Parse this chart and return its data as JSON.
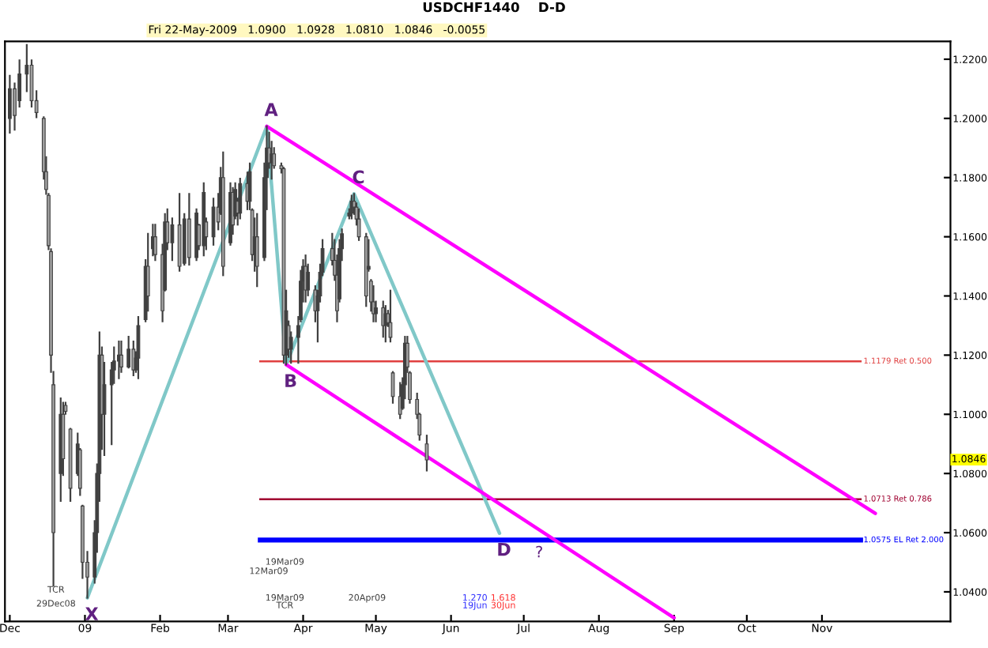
{
  "chart_data": {
    "type": "candlestick",
    "title": "USDCHF1440    D-D",
    "subtitle": "Fri 22-May-2009   1.0900   1.0928   1.0810   1.0846   -0.0055",
    "color": "#404040",
    "x": [
      "2008-12-01",
      "2008-12-03",
      "2008-12-05",
      "2008-12-08",
      "2008-12-10",
      "2008-12-12",
      "2008-12-15",
      "2008-12-16",
      "2008-12-17",
      "2008-12-18",
      "2008-12-19",
      "2008-12-22",
      "2008-12-23",
      "2008-12-24",
      "2008-12-26",
      "2008-12-29",
      "2008-12-30",
      "2008-12-31",
      "2009-01-02",
      "2009-01-05",
      "2009-01-06",
      "2009-01-07",
      "2009-01-08",
      "2009-01-09",
      "2009-01-12",
      "2009-01-13",
      "2009-01-15",
      "2009-01-16",
      "2009-01-19",
      "2009-01-21",
      "2009-01-22",
      "2009-01-23",
      "2009-01-26",
      "2009-01-27",
      "2009-01-29",
      "2009-01-30",
      "2009-02-02",
      "2009-02-03",
      "2009-02-04",
      "2009-02-06",
      "2009-02-09",
      "2009-02-11",
      "2009-02-13",
      "2009-02-16",
      "2009-02-17",
      "2009-02-19",
      "2009-02-20",
      "2009-02-23",
      "2009-02-25",
      "2009-02-26",
      "2009-02-27",
      "2009-03-02",
      "2009-03-03",
      "2009-03-04",
      "2009-03-05",
      "2009-03-06",
      "2009-03-09",
      "2009-03-10",
      "2009-03-11",
      "2009-03-12",
      "2009-03-13",
      "2009-03-16",
      "2009-03-17",
      "2009-03-18",
      "2009-03-19",
      "2009-03-20",
      "2009-03-23",
      "2009-03-24",
      "2009-03-25",
      "2009-03-26",
      "2009-03-27",
      "2009-03-30",
      "2009-03-31",
      "2009-04-01",
      "2009-04-02",
      "2009-04-03",
      "2009-04-06",
      "2009-04-07",
      "2009-04-08",
      "2009-04-09",
      "2009-04-13",
      "2009-04-14",
      "2009-04-15",
      "2009-04-16",
      "2009-04-17",
      "2009-04-20",
      "2009-04-21",
      "2009-04-22",
      "2009-04-23",
      "2009-04-24",
      "2009-04-27",
      "2009-04-28",
      "2009-04-29",
      "2009-04-30",
      "2009-05-01",
      "2009-05-04",
      "2009-05-05",
      "2009-05-06",
      "2009-05-07",
      "2009-05-08",
      "2009-05-11",
      "2009-05-12",
      "2009-05-13",
      "2009-05-14",
      "2009-05-15",
      "2009-05-18",
      "2009-05-19",
      "2009-05-22"
    ],
    "ohlc": [
      [
        1.2,
        1.2144,
        1.1952,
        1.21
      ],
      [
        1.21,
        1.2118,
        1.1962,
        1.201
      ],
      [
        1.206,
        1.2196,
        1.204,
        1.215
      ],
      [
        1.215,
        1.2248,
        1.2092,
        1.218
      ],
      [
        1.218,
        1.2196,
        1.204,
        1.206
      ],
      [
        1.206,
        1.2092,
        1.2004,
        1.202
      ],
      [
        1.2,
        1.2004,
        1.1796,
        1.182
      ],
      [
        1.182,
        1.1869,
        1.1745,
        1.176
      ],
      [
        1.174,
        1.1745,
        1.1558,
        1.157
      ],
      [
        1.155,
        1.1558,
        1.1143,
        1.12
      ],
      [
        1.11,
        1.1143,
        1.0421,
        1.06
      ],
      [
        1.08,
        1.1054,
        1.0707,
        1.1
      ],
      [
        1.1,
        1.1039,
        1.0795,
        1.085
      ],
      [
        1.103,
        1.1039,
        1.1002,
        1.101
      ],
      [
        1.095,
        1.0951,
        1.0707,
        1.075
      ],
      [
        1.08,
        1.0935,
        1.0795,
        1.09
      ],
      [
        1.088,
        1.0883,
        1.0727,
        1.075
      ],
      [
        1.069,
        1.0691,
        1.0447,
        1.05
      ],
      [
        1.05,
        1.0535,
        1.038,
        1.045
      ],
      [
        1.045,
        1.0639,
        1.0431,
        1.06
      ],
      [
        1.06,
        1.0831,
        1.0535,
        1.08
      ],
      [
        1.08,
        1.1277,
        1.0707,
        1.12
      ],
      [
        1.12,
        1.1226,
        1.0883,
        1.1
      ],
      [
        1.1,
        1.1174,
        1.0862,
        1.11
      ],
      [
        1.11,
        1.1174,
        1.0899,
        1.115
      ],
      [
        1.115,
        1.1226,
        1.1106,
        1.118
      ],
      [
        1.118,
        1.1246,
        1.1122,
        1.12
      ],
      [
        1.12,
        1.1246,
        1.1143,
        1.116
      ],
      [
        1.116,
        1.1262,
        1.1158,
        1.122
      ],
      [
        1.122,
        1.1246,
        1.1132,
        1.115
      ],
      [
        1.115,
        1.121,
        1.1143,
        1.119
      ],
      [
        1.119,
        1.1329,
        1.1122,
        1.13
      ],
      [
        1.132,
        1.1521,
        1.1314,
        1.15
      ],
      [
        1.15,
        1.161,
        1.135,
        1.14
      ],
      [
        1.156,
        1.1641,
        1.1537,
        1.16
      ],
      [
        1.16,
        1.1641,
        1.1521,
        1.154
      ],
      [
        1.154,
        1.1573,
        1.1314,
        1.135
      ],
      [
        1.142,
        1.1677,
        1.1418,
        1.165
      ],
      [
        1.165,
        1.1693,
        1.1558,
        1.158
      ],
      [
        1.158,
        1.1662,
        1.1521,
        1.164
      ],
      [
        1.164,
        1.1745,
        1.1485,
        1.15
      ],
      [
        1.151,
        1.1677,
        1.1506,
        1.166
      ],
      [
        1.166,
        1.1745,
        1.1506,
        1.153
      ],
      [
        1.153,
        1.1693,
        1.1521,
        1.168
      ],
      [
        1.164,
        1.1641,
        1.1558,
        1.157
      ],
      [
        1.157,
        1.1781,
        1.1537,
        1.175
      ],
      [
        1.165,
        1.1662,
        1.1558,
        1.16
      ],
      [
        1.16,
        1.1729,
        1.1573,
        1.17
      ],
      [
        1.17,
        1.1745,
        1.1625,
        1.165
      ],
      [
        1.168,
        1.1833,
        1.1677,
        1.18
      ],
      [
        1.18,
        1.1885,
        1.147,
        1.15
      ],
      [
        1.158,
        1.1781,
        1.1573,
        1.175
      ],
      [
        1.175,
        1.1765,
        1.161,
        1.164
      ],
      [
        1.167,
        1.1781,
        1.1662,
        1.176
      ],
      [
        1.172,
        1.1729,
        1.1641,
        1.168
      ],
      [
        1.168,
        1.1796,
        1.1662,
        1.178
      ],
      [
        1.178,
        1.1817,
        1.1693,
        1.172
      ],
      [
        1.172,
        1.1848,
        1.1693,
        1.182
      ],
      [
        1.169,
        1.1693,
        1.1521,
        1.154
      ],
      [
        1.154,
        1.1662,
        1.1485,
        1.16
      ],
      [
        1.16,
        1.1677,
        1.1433,
        1.15
      ],
      [
        1.153,
        1.1848,
        1.1521,
        1.18
      ],
      [
        1.18,
        1.1973,
        1.1693,
        1.19
      ],
      [
        1.19,
        1.1952,
        1.1833,
        1.185
      ],
      [
        1.185,
        1.1921,
        1.1796,
        1.188
      ],
      [
        1.188,
        1.19,
        1.1833,
        1.184
      ],
      [
        1.184,
        1.1848,
        1.1817,
        1.183
      ],
      [
        1.183,
        1.1833,
        1.1174,
        1.12
      ],
      [
        1.12,
        1.1418,
        1.1168,
        1.135
      ],
      [
        1.13,
        1.1314,
        1.1194,
        1.122
      ],
      [
        1.122,
        1.1277,
        1.1174,
        1.126
      ],
      [
        1.126,
        1.1329,
        1.1174,
        1.13
      ],
      [
        1.132,
        1.1485,
        1.1314,
        1.145
      ],
      [
        1.145,
        1.1521,
        1.1381,
        1.15
      ],
      [
        1.15,
        1.1537,
        1.1381,
        1.142
      ],
      [
        1.142,
        1.1506,
        1.1402,
        1.148
      ],
      [
        1.142,
        1.1433,
        1.1314,
        1.135
      ],
      [
        1.135,
        1.1418,
        1.1246,
        1.14
      ],
      [
        1.14,
        1.1506,
        1.1381,
        1.148
      ],
      [
        1.148,
        1.1589,
        1.147,
        1.156
      ],
      [
        1.156,
        1.161,
        1.1506,
        1.152
      ],
      [
        1.152,
        1.1589,
        1.1454,
        1.147
      ],
      [
        1.147,
        1.1537,
        1.1314,
        1.135
      ],
      [
        1.139,
        1.1589,
        1.1381,
        1.156
      ],
      [
        1.156,
        1.1625,
        1.1521,
        1.161
      ],
      [
        1.167,
        1.1693,
        1.1662,
        1.168
      ],
      [
        1.168,
        1.1739,
        1.1662,
        1.172
      ],
      [
        1.172,
        1.1745,
        1.1677,
        1.17
      ],
      [
        1.17,
        1.1713,
        1.1641,
        1.166
      ],
      [
        1.166,
        1.1693,
        1.1589,
        1.16
      ],
      [
        1.16,
        1.161,
        1.1366,
        1.14
      ],
      [
        1.149,
        1.1589,
        1.1485,
        1.15
      ],
      [
        1.145,
        1.1454,
        1.135,
        1.138
      ],
      [
        1.138,
        1.1433,
        1.1314,
        1.134
      ],
      [
        1.134,
        1.1381,
        1.1314,
        1.136
      ],
      [
        1.136,
        1.1381,
        1.1262,
        1.13
      ],
      [
        1.13,
        1.1366,
        1.1246,
        1.134
      ],
      [
        1.134,
        1.135,
        1.1298,
        1.131
      ],
      [
        1.131,
        1.1418,
        1.1246,
        1.126
      ],
      [
        1.114,
        1.1143,
        1.1039,
        1.106
      ],
      [
        1.106,
        1.1106,
        1.0987,
        1.1
      ],
      [
        1.102,
        1.1122,
        1.1018,
        1.11
      ],
      [
        1.11,
        1.1262,
        1.1054,
        1.124
      ],
      [
        1.124,
        1.1262,
        1.1143,
        1.116
      ],
      [
        1.114,
        1.1143,
        1.1039,
        1.105
      ],
      [
        1.105,
        1.107,
        1.0987,
        1.1
      ],
      [
        1.1,
        1.1002,
        1.0914,
        1.093
      ],
      [
        1.09,
        1.0928,
        1.081,
        1.0846
      ]
    ],
    "series": [
      {
        "type": "line",
        "color": "#80c8c8",
        "x": [
          "2009-01-02",
          "2009-03-17",
          "2009-03-25",
          "2009-04-22",
          "2009-06-21"
        ],
        "values": [
          1.038,
          1.1973,
          1.1168,
          1.1745,
          1.0598
        ],
        "value_labels": [
          "X",
          "A",
          "B",
          "C",
          "D"
        ]
      },
      {
        "type": "line",
        "color": "#ff00ff",
        "x": [
          "2009-03-17",
          "2009-11-23"
        ],
        "values": [
          1.1973,
          1.0665
        ]
      },
      {
        "type": "line",
        "color": "#ff00ff",
        "x": [
          "2009-03-25",
          "2009-09-01"
        ],
        "values": [
          1.1168,
          1.0312
        ]
      }
    ],
    "ref_lines": [
      {
        "axis": "y",
        "value": 1.1179,
        "label": "1.1179 Ret 0.500",
        "color": "#e04040"
      },
      {
        "axis": "y",
        "value": 1.0713,
        "label": "1.0713 Ret 0.786",
        "color": "#a00030"
      },
      {
        "axis": "y",
        "value": 1.0575,
        "label": "1.0575 EL Ret 2.000",
        "color": "#0000ff"
      }
    ],
    "annotations": [
      "?",
      "TCR",
      "29Dec08",
      "19Mar09",
      "12Mar09",
      "19Mar09",
      "TCR",
      "20Apr09",
      "1.270",
      "19Jun",
      "1.618",
      "30Jun",
      "1.0846"
    ],
    "xlim": [
      "2008-11-29",
      "2009-12-24"
    ],
    "xticks": [
      {
        "value": "2008-12-01",
        "label": "Dec"
      },
      {
        "value": "2009-01-01",
        "label": "09"
      },
      {
        "value": "2009-02-01",
        "label": "Feb"
      },
      {
        "value": "2009-03-01",
        "label": "Mar"
      },
      {
        "value": "2009-04-01",
        "label": "Apr"
      },
      {
        "value": "2009-05-01",
        "label": "May"
      },
      {
        "value": "2009-06-01",
        "label": "Jun"
      },
      {
        "value": "2009-07-01",
        "label": "Jul"
      },
      {
        "value": "2009-08-01",
        "label": "Aug"
      },
      {
        "value": "2009-09-01",
        "label": "Sep"
      },
      {
        "value": "2009-10-01",
        "label": "Oct"
      },
      {
        "value": "2009-11-01",
        "label": "Nov"
      }
    ],
    "ylim": [
      1.03,
      1.226
    ],
    "yticks": [
      {
        "value": 1.04,
        "label": "1.0400"
      },
      {
        "value": 1.06,
        "label": "1.0600"
      },
      {
        "value": 1.08,
        "label": "1.0800"
      },
      {
        "value": 1.1,
        "label": "1.1000"
      },
      {
        "value": 1.12,
        "label": "1.1200"
      },
      {
        "value": 1.14,
        "label": "1.1400"
      },
      {
        "value": 1.16,
        "label": "1.1600"
      },
      {
        "value": 1.18,
        "label": "1.1800"
      },
      {
        "value": 1.2,
        "label": "1.2000"
      },
      {
        "value": 1.22,
        "label": "1.2200"
      }
    ],
    "grid": false,
    "legend": false
  }
}
